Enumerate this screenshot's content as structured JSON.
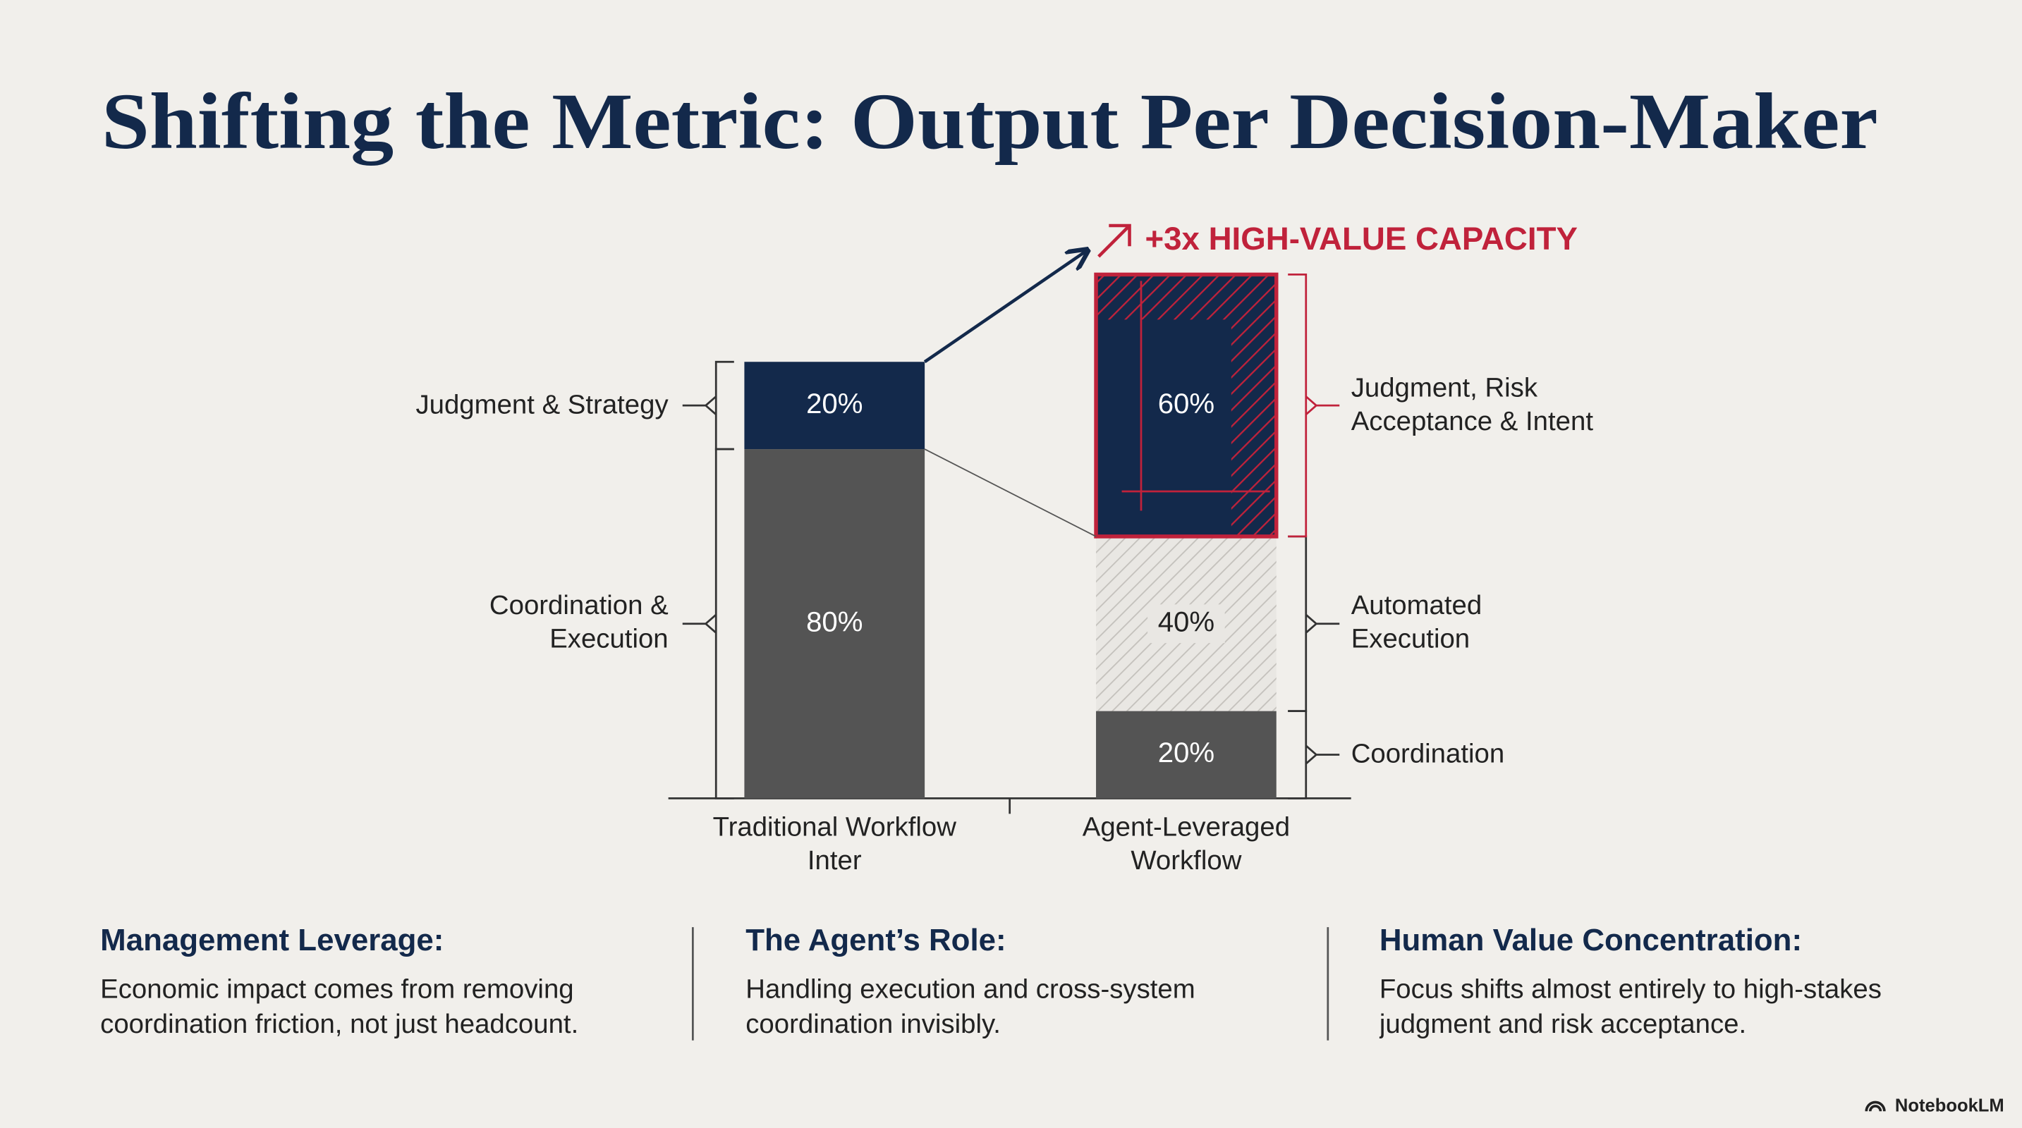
{
  "title": "Shifting the Metric: Output Per Decision-Maker",
  "chart_data": {
    "type": "stacked-bar",
    "annotation": "+3x HIGH-VALUE CAPACITY",
    "annotation_color": "#c0223b",
    "categories": [
      "Traditional Workflow Inter",
      "Agent-Leveraged Workflow"
    ],
    "series": [
      {
        "name": "Coordination & Execution",
        "color": "#545454",
        "values": [
          80,
          null
        ],
        "value_labels": [
          "80%",
          null
        ]
      },
      {
        "name": "Judgment & Strategy",
        "color": "#13294b",
        "values": [
          20,
          null
        ],
        "value_labels": [
          "20%",
          null
        ]
      },
      {
        "name": "Coordination",
        "color": "#545454",
        "values": [
          null,
          20
        ],
        "value_labels": [
          null,
          "20%"
        ]
      },
      {
        "name": "Automated Execution",
        "color": "#e6e4e0",
        "hatch": true,
        "values": [
          null,
          40
        ],
        "value_labels": [
          null,
          "40%"
        ]
      },
      {
        "name": "Judgment, Risk Acceptance & Intent",
        "color": "#13294b",
        "highlight_color": "#c0223b",
        "values": [
          null,
          60
        ],
        "value_labels": [
          null,
          "60%"
        ]
      }
    ]
  },
  "columns": [
    {
      "heading": "Management Leverage:",
      "text": "Economic impact comes from removing coordination friction, not just headcount."
    },
    {
      "heading": "The Agent’s Role:",
      "text": "Handling execution and cross-system coordination invisibly."
    },
    {
      "heading": "Human Value Concentration:",
      "text": "Focus shifts almost entirely to high-stakes judgment and risk acceptance."
    }
  ],
  "footer": "NotebookLM"
}
